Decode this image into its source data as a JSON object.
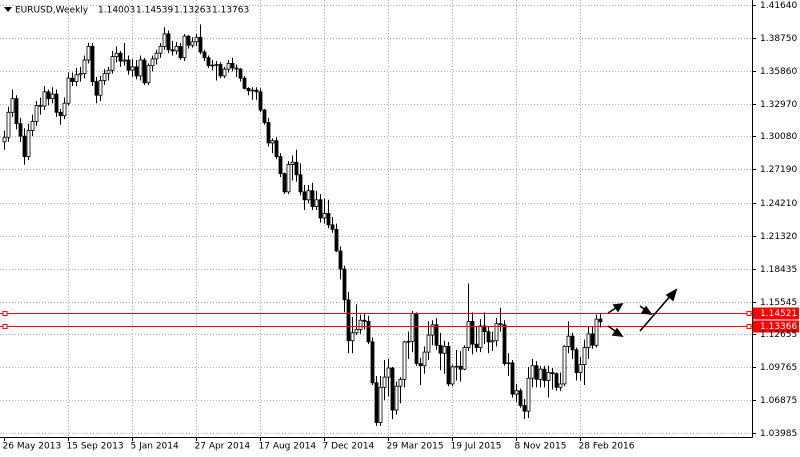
{
  "chart_data": {
    "type": "candlestick",
    "title": "EURUSD,Weekly",
    "categories": [
      "26 May 2013",
      null,
      null,
      null,
      null,
      null,
      null,
      null,
      null,
      null,
      null,
      null,
      null,
      null,
      null,
      null,
      "15 Sep 2013",
      null,
      null,
      null,
      null,
      null,
      null,
      null,
      null,
      null,
      null,
      null,
      null,
      null,
      null,
      null,
      "5 Jan 2014",
      null,
      null,
      null,
      null,
      null,
      null,
      null,
      null,
      null,
      null,
      null,
      null,
      null,
      null,
      null,
      "27 Apr 2014",
      null,
      null,
      null,
      null,
      null,
      null,
      null,
      null,
      null,
      null,
      null,
      null,
      null,
      null,
      null,
      "17 Aug 2014",
      null,
      null,
      null,
      null,
      null,
      null,
      null,
      null,
      null,
      null,
      null,
      null,
      null,
      null,
      null,
      "7 Dec 2014",
      null,
      null,
      null,
      null,
      null,
      null,
      null,
      null,
      null,
      null,
      null,
      null,
      null,
      null,
      null,
      "29 Mar 2015",
      null,
      null,
      null,
      null,
      null,
      null,
      null,
      null,
      null,
      null,
      null,
      null,
      null,
      null,
      null,
      "19 Jul 2015",
      null,
      null,
      null,
      null,
      null,
      null,
      null,
      null,
      null,
      null,
      null,
      null,
      null,
      null,
      null,
      "8 Nov 2015",
      null,
      null,
      null,
      null,
      null,
      null,
      null,
      null,
      null,
      null,
      null,
      null,
      null,
      null,
      null,
      "28 Feb 2016",
      null,
      null,
      null,
      null,
      null
    ],
    "open": [
      1.296,
      1.3,
      1.322,
      1.334,
      1.312,
      1.301,
      1.283,
      1.306,
      1.314,
      1.328,
      1.3275,
      1.34,
      1.334,
      1.338,
      1.322,
      1.319,
      1.33,
      1.352,
      1.349,
      1.355,
      1.356,
      1.368,
      1.38,
      1.349,
      1.337,
      1.35,
      1.356,
      1.359,
      1.371,
      1.374,
      1.367,
      1.368,
      1.359,
      1.362,
      1.354,
      1.368,
      1.348,
      1.363,
      1.369,
      1.374,
      1.38,
      1.391,
      1.377,
      1.376,
      1.38,
      1.37,
      1.389,
      1.381,
      1.384,
      1.388,
      1.375,
      1.37,
      1.363,
      1.3635,
      1.364,
      1.354,
      1.36,
      1.365,
      1.361,
      1.36,
      1.352,
      1.343,
      1.341,
      1.3415,
      1.34,
      1.324,
      1.313,
      1.295,
      1.297,
      1.283,
      1.268,
      1.252,
      1.276,
      1.278,
      1.267,
      1.252,
      1.245,
      1.253,
      1.239,
      1.245,
      1.229,
      1.233,
      1.223,
      1.219,
      1.2,
      1.184,
      1.157,
      1.121,
      1.128,
      1.131,
      1.139,
      1.138,
      1.12,
      1.084,
      1.049,
      1.08,
      1.089,
      1.097,
      1.06,
      1.081,
      1.087,
      1.12,
      1.1205,
      1.145,
      1.101,
      1.099,
      1.111,
      1.126,
      1.135,
      1.117,
      1.11,
      1.116,
      1.083,
      1.098,
      1.0985,
      1.096,
      1.115,
      1.138,
      1.118,
      1.115,
      1.134,
      1.129,
      1.12,
      1.121,
      1.136,
      1.135,
      1.101,
      1.1015,
      1.074,
      1.077,
      1.064,
      1.059,
      1.088,
      1.099,
      1.087,
      1.096,
      1.086,
      1.093,
      1.092,
      1.08,
      1.083,
      1.116,
      1.125,
      1.113,
      1.093,
      1.1,
      1.115,
      1.127,
      1.117,
      1.14003
    ],
    "high": [
      1.306,
      1.327,
      1.342,
      1.337,
      1.317,
      1.308,
      1.312,
      1.32,
      1.332,
      1.335,
      1.345,
      1.342,
      1.344,
      1.342,
      1.325,
      1.335,
      1.357,
      1.357,
      1.361,
      1.362,
      1.372,
      1.3832,
      1.383,
      1.353,
      1.354,
      1.36,
      1.362,
      1.376,
      1.38,
      1.376,
      1.383,
      1.372,
      1.369,
      1.368,
      1.372,
      1.37,
      1.365,
      1.372,
      1.377,
      1.383,
      1.3967,
      1.394,
      1.385,
      1.384,
      1.383,
      1.391,
      1.39,
      1.388,
      1.391,
      1.3993,
      1.377,
      1.372,
      1.368,
      1.367,
      1.366,
      1.362,
      1.368,
      1.37,
      1.364,
      1.361,
      1.354,
      1.344,
      1.344,
      1.344,
      1.343,
      1.325,
      1.317,
      1.299,
      1.3,
      1.286,
      1.269,
      1.279,
      1.284,
      1.289,
      1.277,
      1.258,
      1.258,
      1.26,
      1.253,
      1.25,
      1.246,
      1.245,
      1.23,
      1.224,
      1.204,
      1.187,
      1.164,
      1.142,
      1.153,
      1.144,
      1.145,
      1.143,
      1.124,
      1.09,
      1.09,
      1.104,
      1.105,
      1.098,
      1.085,
      1.089,
      1.121,
      1.129,
      1.147,
      1.146,
      1.106,
      1.116,
      1.138,
      1.139,
      1.141,
      1.128,
      1.121,
      1.12,
      1.1,
      1.113,
      1.112,
      1.117,
      1.1714,
      1.146,
      1.133,
      1.14,
      1.146,
      1.133,
      1.129,
      1.141,
      1.15,
      1.139,
      1.11,
      1.104,
      1.083,
      1.079,
      1.07,
      1.098,
      1.105,
      1.103,
      1.099,
      1.099,
      1.099,
      1.097,
      1.093,
      1.093,
      1.117,
      1.138,
      1.128,
      1.115,
      1.107,
      1.122,
      1.134,
      1.134,
      1.144,
      1.14539
    ],
    "low": [
      1.289,
      1.296,
      1.318,
      1.307,
      1.296,
      1.276,
      1.28,
      1.301,
      1.31,
      1.32,
      1.324,
      1.328,
      1.33,
      1.318,
      1.311,
      1.316,
      1.328,
      1.345,
      1.345,
      1.349,
      1.352,
      1.365,
      1.345,
      1.33,
      1.332,
      1.346,
      1.35,
      1.356,
      1.366,
      1.362,
      1.363,
      1.355,
      1.353,
      1.351,
      1.35,
      1.346,
      1.346,
      1.358,
      1.364,
      1.37,
      1.377,
      1.374,
      1.372,
      1.373,
      1.368,
      1.367,
      1.378,
      1.379,
      1.38,
      1.373,
      1.367,
      1.361,
      1.359,
      1.35,
      1.352,
      1.352,
      1.357,
      1.358,
      1.353,
      1.349,
      1.342,
      1.337,
      1.333,
      1.333,
      1.322,
      1.311,
      1.292,
      1.286,
      1.281,
      1.265,
      1.25,
      1.25,
      1.262,
      1.261,
      1.249,
      1.236,
      1.242,
      1.236,
      1.236,
      1.225,
      1.224,
      1.22,
      1.216,
      1.199,
      1.175,
      1.146,
      1.11,
      1.11,
      1.126,
      1.127,
      1.131,
      1.118,
      1.082,
      1.0462,
      1.046,
      1.069,
      1.072,
      1.052,
      1.056,
      1.066,
      1.08,
      1.105,
      1.111,
      1.099,
      1.082,
      1.092,
      1.104,
      1.117,
      1.113,
      1.095,
      1.092,
      1.081,
      1.081,
      1.086,
      1.085,
      1.095,
      1.112,
      1.109,
      1.111,
      1.111,
      1.118,
      1.11,
      1.112,
      1.116,
      1.129,
      1.099,
      1.09,
      1.071,
      1.067,
      1.062,
      1.052,
      1.053,
      1.08,
      1.08,
      1.08,
      1.08,
      1.071,
      1.078,
      1.077,
      1.077,
      1.081,
      1.11,
      1.105,
      1.086,
      1.086,
      1.082,
      1.105,
      1.114,
      1.115,
      1.13263
    ],
    "close": [
      1.3,
      1.322,
      1.334,
      1.312,
      1.301,
      1.283,
      1.306,
      1.314,
      1.328,
      1.3275,
      1.34,
      1.334,
      1.338,
      1.322,
      1.319,
      1.33,
      1.352,
      1.349,
      1.355,
      1.356,
      1.368,
      1.38,
      1.349,
      1.337,
      1.35,
      1.356,
      1.359,
      1.371,
      1.374,
      1.367,
      1.368,
      1.359,
      1.362,
      1.354,
      1.368,
      1.348,
      1.363,
      1.369,
      1.374,
      1.38,
      1.391,
      1.377,
      1.376,
      1.38,
      1.37,
      1.389,
      1.381,
      1.384,
      1.388,
      1.375,
      1.37,
      1.363,
      1.3635,
      1.364,
      1.354,
      1.36,
      1.365,
      1.361,
      1.36,
      1.352,
      1.343,
      1.341,
      1.3415,
      1.34,
      1.324,
      1.313,
      1.295,
      1.297,
      1.283,
      1.268,
      1.252,
      1.276,
      1.278,
      1.267,
      1.252,
      1.245,
      1.253,
      1.239,
      1.245,
      1.229,
      1.233,
      1.223,
      1.219,
      1.2,
      1.184,
      1.157,
      1.121,
      1.128,
      1.131,
      1.139,
      1.138,
      1.12,
      1.084,
      1.049,
      1.08,
      1.089,
      1.097,
      1.06,
      1.081,
      1.087,
      1.12,
      1.1205,
      1.145,
      1.101,
      1.099,
      1.111,
      1.126,
      1.135,
      1.117,
      1.11,
      1.116,
      1.083,
      1.098,
      1.0985,
      1.096,
      1.115,
      1.138,
      1.118,
      1.115,
      1.134,
      1.129,
      1.12,
      1.121,
      1.136,
      1.135,
      1.101,
      1.1015,
      1.074,
      1.077,
      1.064,
      1.059,
      1.088,
      1.099,
      1.087,
      1.096,
      1.086,
      1.093,
      1.092,
      1.08,
      1.083,
      1.116,
      1.125,
      1.113,
      1.093,
      1.1,
      1.115,
      1.127,
      1.117,
      1.14,
      1.13763
    ],
    "ylim": [
      1.0363,
      1.4208
    ],
    "yticks": [
      {
        "value": 1.4164,
        "label": "1.41640"
      },
      {
        "value": 1.3875,
        "label": "1.38750"
      },
      {
        "value": 1.3586,
        "label": "1.35860"
      },
      {
        "value": 1.3297,
        "label": "1.32970"
      },
      {
        "value": 1.3008,
        "label": "1.30080"
      },
      {
        "value": 1.2719,
        "label": "1.27190"
      },
      {
        "value": 1.2421,
        "label": "1.24210"
      },
      {
        "value": 1.2132,
        "label": "1.21320"
      },
      1.18435,
      1.15545,
      1.12655,
      1.09765,
      1.06875,
      1.03985
    ],
    "hlines": [
      1.14521,
      1.13366
    ],
    "hline_color": "#ff0000",
    "grid": true
  }
}
